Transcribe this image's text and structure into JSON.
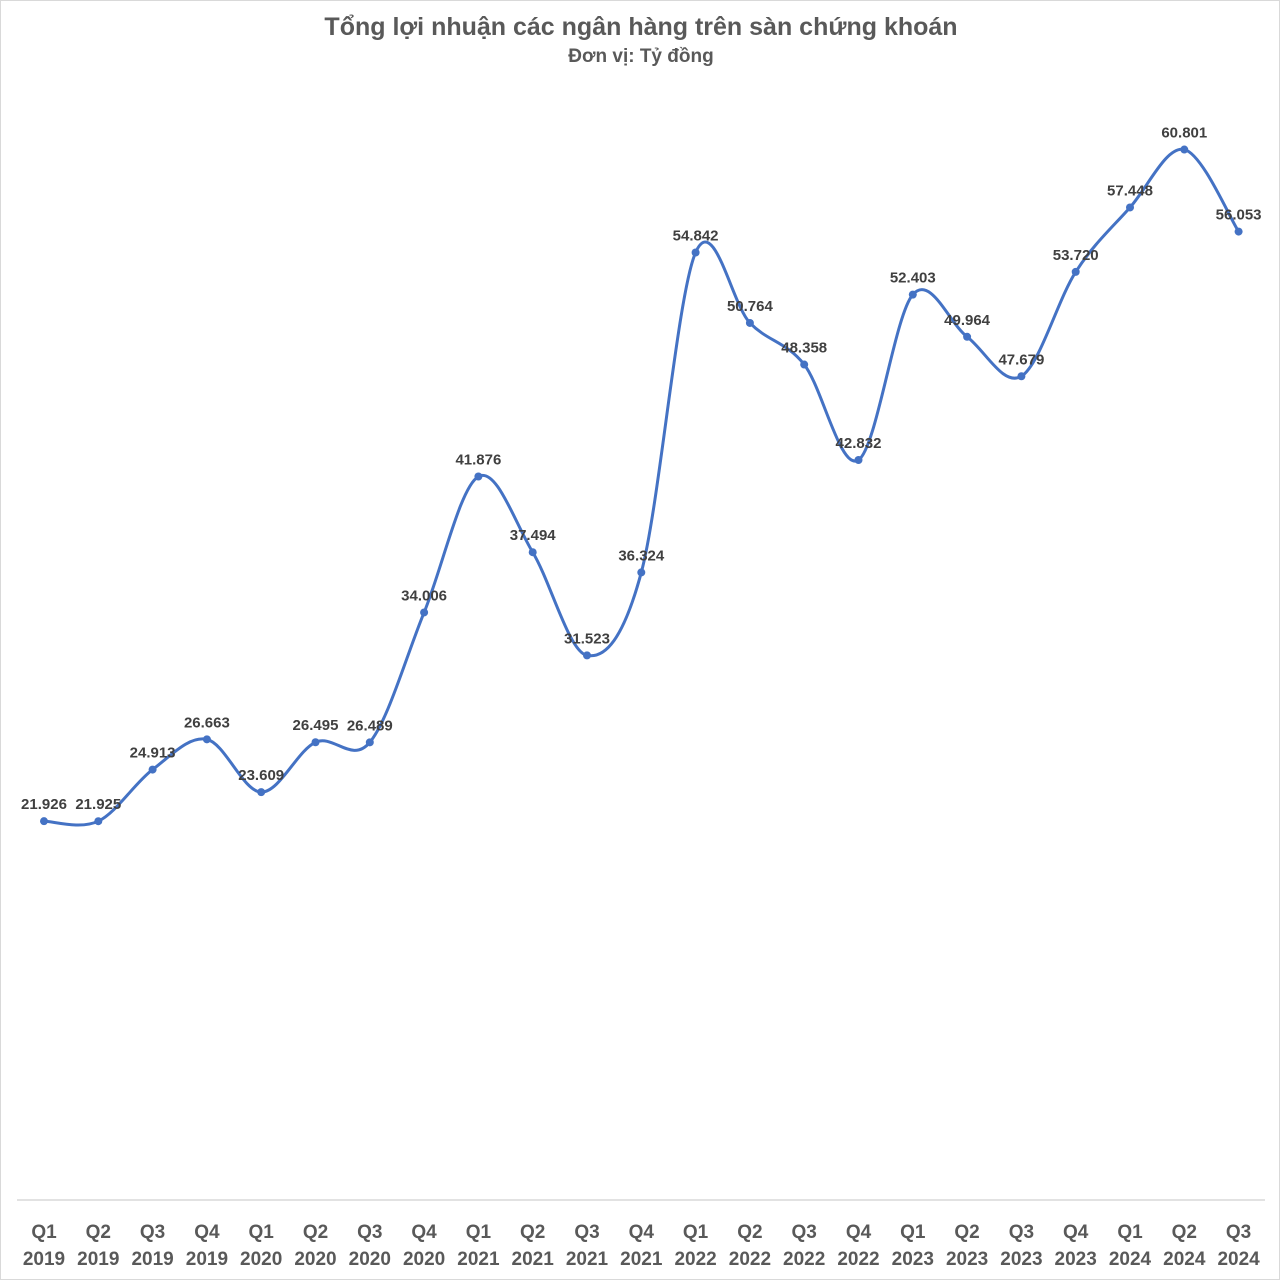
{
  "chart_data": {
    "type": "line",
    "title": "Tổng lợi nhuận các ngân hàng trên sàn chứng khoán",
    "subtitle": "Đơn vị: Tỷ đồng",
    "categories": [
      [
        "Q1",
        "2019"
      ],
      [
        "Q2",
        "2019"
      ],
      [
        "Q3",
        "2019"
      ],
      [
        "Q4",
        "2019"
      ],
      [
        "Q1",
        "2020"
      ],
      [
        "Q2",
        "2020"
      ],
      [
        "Q3",
        "2020"
      ],
      [
        "Q4",
        "2020"
      ],
      [
        "Q1",
        "2021"
      ],
      [
        "Q2",
        "2021"
      ],
      [
        "Q3",
        "2021"
      ],
      [
        "Q4",
        "2021"
      ],
      [
        "Q1",
        "2022"
      ],
      [
        "Q2",
        "2022"
      ],
      [
        "Q3",
        "2022"
      ],
      [
        "Q4",
        "2022"
      ],
      [
        "Q1",
        "2023"
      ],
      [
        "Q2",
        "2023"
      ],
      [
        "Q3",
        "2023"
      ],
      [
        "Q4",
        "2023"
      ],
      [
        "Q1",
        "2024"
      ],
      [
        "Q2",
        "2024"
      ],
      [
        "Q3",
        "2024"
      ]
    ],
    "series": [
      {
        "values": [
          21926,
          21925,
          24913,
          26663,
          23609,
          26495,
          26489,
          34006,
          41876,
          37494,
          31523,
          36324,
          54842,
          50764,
          48358,
          42832,
          52403,
          49964,
          47679,
          53720,
          57448,
          60801,
          56053
        ],
        "labels": [
          "21.926",
          "21.925",
          "24.913",
          "26.663",
          "23.609",
          "26.495",
          "26.489",
          "34.006",
          "41.876",
          "37.494",
          "31.523",
          "36.324",
          "54.842",
          "50.764",
          "48.358",
          "42.832",
          "52.403",
          "49.964",
          "47.679",
          "53.720",
          "57.448",
          "60.801",
          "56.053"
        ],
        "color": "#4472C4"
      }
    ],
    "ylim": [
      0,
      65000
    ],
    "grid": false,
    "smooth": true,
    "baseline_color": "#d9d9d9"
  }
}
